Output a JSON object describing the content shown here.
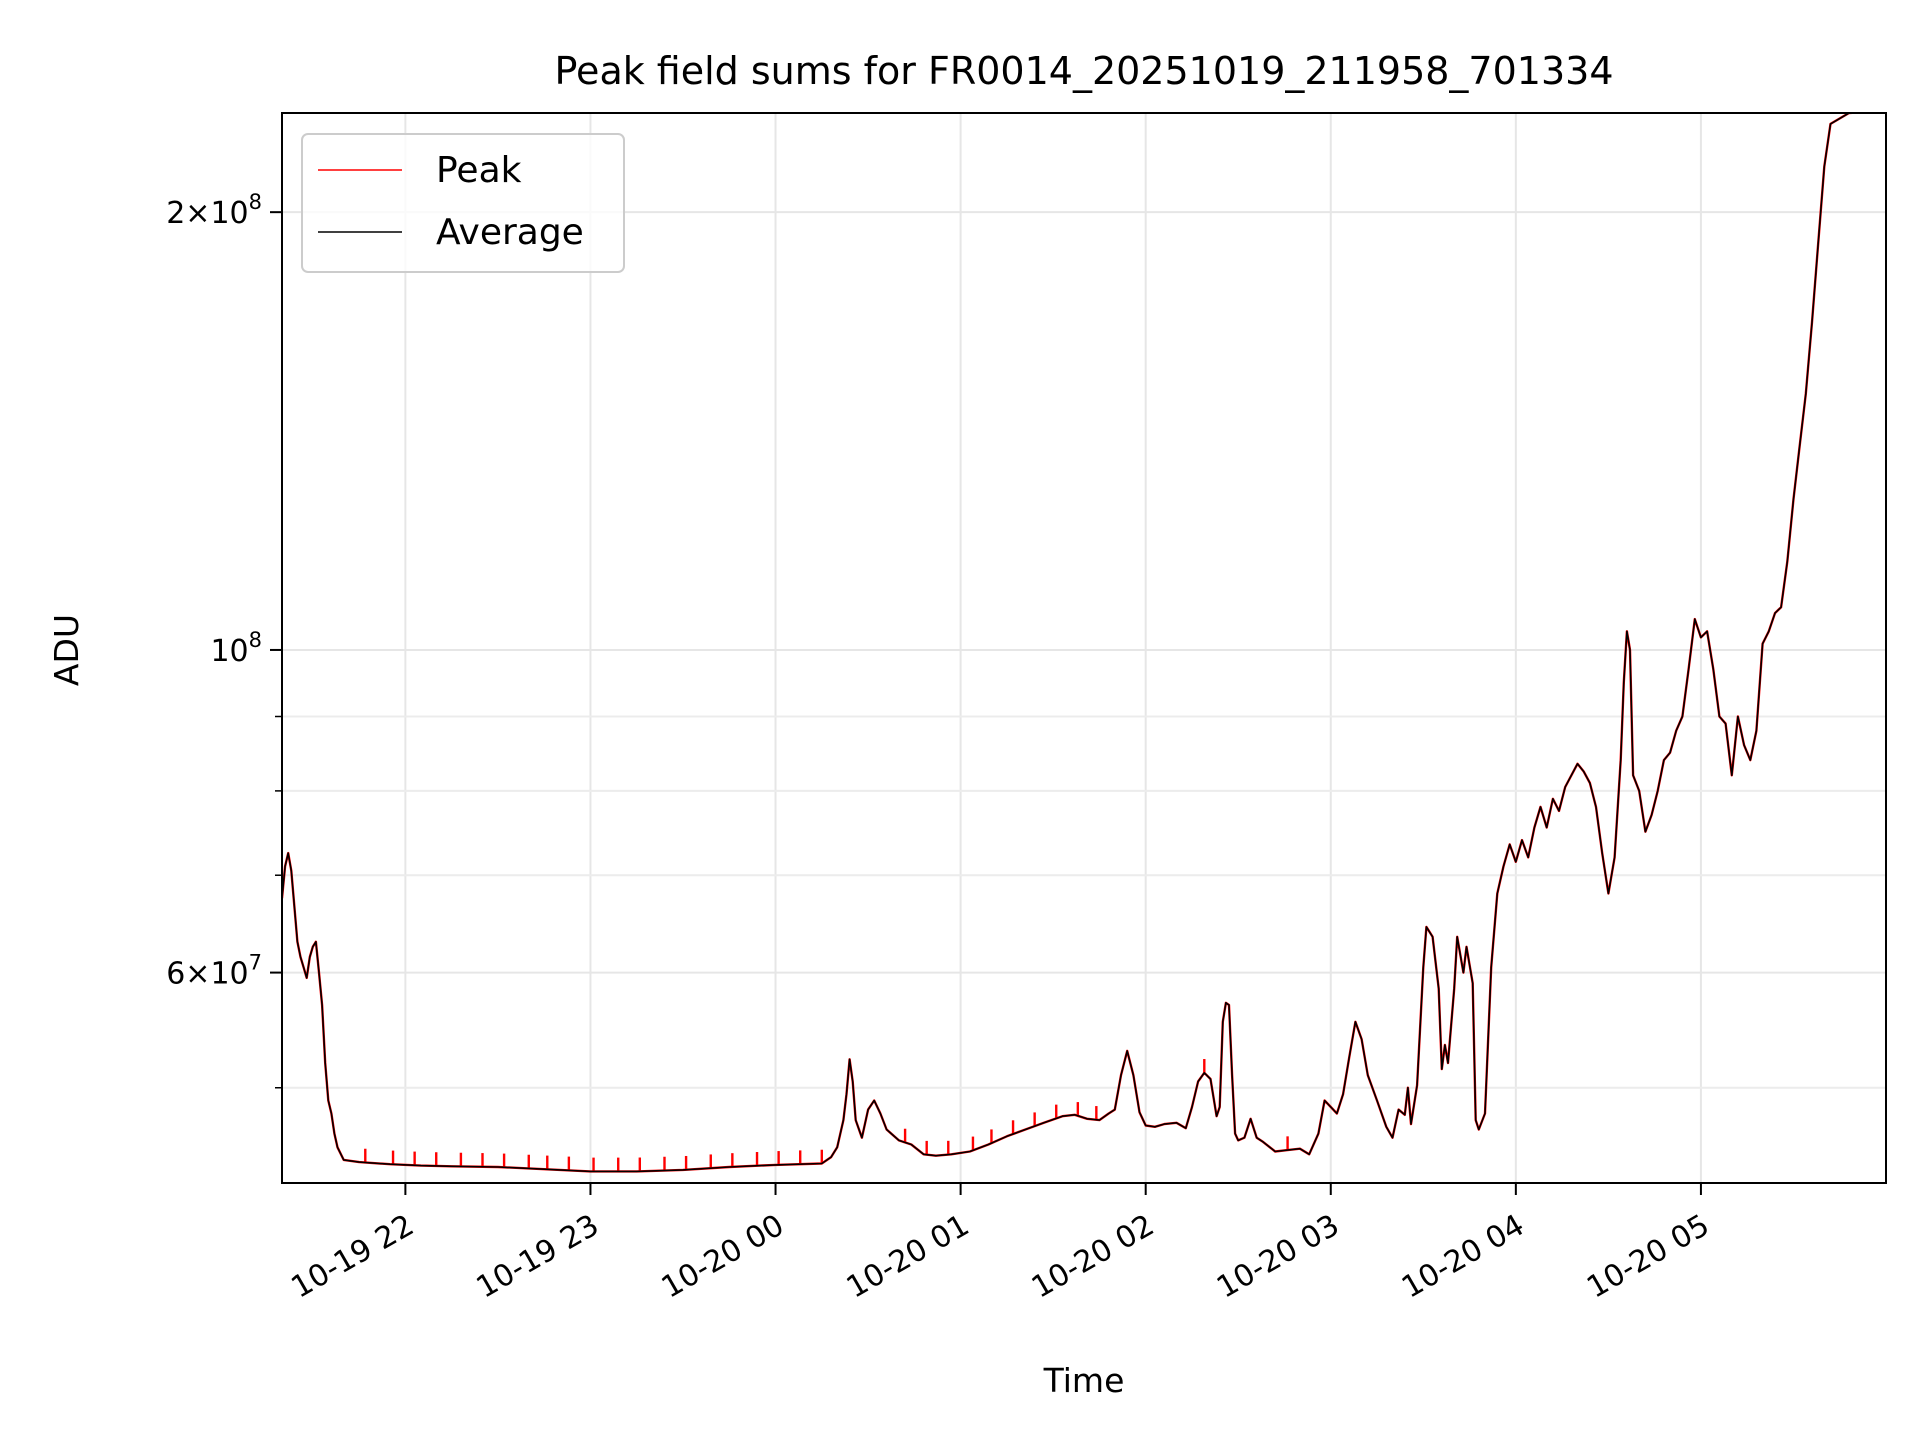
{
  "chart_data": {
    "type": "line",
    "title": "Peak field sums for FR0014_20251019_211958_701334",
    "xlabel": "Time",
    "ylabel": "ADU",
    "yscale": "log",
    "xlim": [
      "2025-10-19 21:20",
      "2025-10-20 06:00"
    ],
    "ylim": [
      43000000,
      234000000
    ],
    "x_ticks": [
      {
        "t": "2025-10-19 22:00",
        "label": "10-19 22"
      },
      {
        "t": "2025-10-19 23:00",
        "label": "10-19 23"
      },
      {
        "t": "2025-10-20 00:00",
        "label": "10-20 00"
      },
      {
        "t": "2025-10-20 01:00",
        "label": "10-20 01"
      },
      {
        "t": "2025-10-20 02:00",
        "label": "10-20 02"
      },
      {
        "t": "2025-10-20 03:00",
        "label": "10-20 03"
      },
      {
        "t": "2025-10-20 04:00",
        "label": "10-20 04"
      },
      {
        "t": "2025-10-20 05:00",
        "label": "10-20 05"
      }
    ],
    "y_major_ticks": [
      {
        "v": 60000000,
        "mant": "6",
        "exp": "7"
      },
      {
        "v": 100000000,
        "mant": "",
        "exp": "8"
      },
      {
        "v": 200000000,
        "mant": "2",
        "exp": "8"
      }
    ],
    "y_minor_ticks": [
      50000000,
      70000000,
      80000000,
      90000000
    ],
    "grid": true,
    "legend_position": "top-left",
    "series": [
      {
        "name": "Peak",
        "color": "#ff0000",
        "spikes": [
          "2025-10-19 21:47",
          "2025-10-19 21:56",
          "2025-10-19 22:03",
          "2025-10-19 22:10",
          "2025-10-19 22:18",
          "2025-10-19 22:25",
          "2025-10-19 22:32",
          "2025-10-19 22:40",
          "2025-10-19 22:46",
          "2025-10-19 22:53",
          "2025-10-19 23:01",
          "2025-10-19 23:09",
          "2025-10-19 23:16",
          "2025-10-19 23:24",
          "2025-10-19 23:31",
          "2025-10-19 23:39",
          "2025-10-19 23:46",
          "2025-10-19 23:54",
          "2025-10-20 00:01",
          "2025-10-20 00:08",
          "2025-10-20 00:15",
          "2025-10-20 00:42",
          "2025-10-20 00:49",
          "2025-10-20 00:56",
          "2025-10-20 01:04",
          "2025-10-20 01:10",
          "2025-10-20 01:17",
          "2025-10-20 01:24",
          "2025-10-20 01:31",
          "2025-10-20 01:38",
          "2025-10-20 01:44",
          "2025-10-20 02:19",
          "2025-10-20 02:46"
        ],
        "spike_height_pct": 2.2
      },
      {
        "name": "Average",
        "color": "#000000",
        "points": [
          [
            "2025-10-19 21:20",
            67500000
          ],
          [
            "2025-10-19 21:21",
            71000000
          ],
          [
            "2025-10-19 21:22",
            72500000
          ],
          [
            "2025-10-19 21:23",
            70500000
          ],
          [
            "2025-10-19 21:25",
            63000000
          ],
          [
            "2025-10-19 21:26",
            61500000
          ],
          [
            "2025-10-19 21:27",
            60500000
          ],
          [
            "2025-10-19 21:28",
            59500000
          ],
          [
            "2025-10-19 21:29",
            61500000
          ],
          [
            "2025-10-19 21:30",
            62500000
          ],
          [
            "2025-10-19 21:31",
            63000000
          ],
          [
            "2025-10-19 21:32",
            60000000
          ],
          [
            "2025-10-19 21:33",
            57000000
          ],
          [
            "2025-10-19 21:34",
            52000000
          ],
          [
            "2025-10-19 21:35",
            49000000
          ],
          [
            "2025-10-19 21:36",
            48000000
          ],
          [
            "2025-10-19 21:37",
            46500000
          ],
          [
            "2025-10-19 21:38",
            45500000
          ],
          [
            "2025-10-19 21:40",
            44600000
          ],
          [
            "2025-10-19 21:45",
            44450000
          ],
          [
            "2025-10-19 21:55",
            44300000
          ],
          [
            "2025-10-19 22:05",
            44200000
          ],
          [
            "2025-10-19 22:15",
            44150000
          ],
          [
            "2025-10-19 22:30",
            44100000
          ],
          [
            "2025-10-19 22:45",
            43950000
          ],
          [
            "2025-10-19 23:00",
            43800000
          ],
          [
            "2025-10-19 23:15",
            43800000
          ],
          [
            "2025-10-19 23:30",
            43900000
          ],
          [
            "2025-10-19 23:45",
            44100000
          ],
          [
            "2025-10-20 00:00",
            44250000
          ],
          [
            "2025-10-20 00:15",
            44350000
          ],
          [
            "2025-10-20 00:18",
            44800000
          ],
          [
            "2025-10-20 00:20",
            45500000
          ],
          [
            "2025-10-20 00:22",
            47500000
          ],
          [
            "2025-10-20 00:23",
            49500000
          ],
          [
            "2025-10-20 00:24",
            52300000
          ],
          [
            "2025-10-20 00:25",
            50500000
          ],
          [
            "2025-10-20 00:26",
            47500000
          ],
          [
            "2025-10-20 00:28",
            46200000
          ],
          [
            "2025-10-20 00:30",
            48300000
          ],
          [
            "2025-10-20 00:32",
            49000000
          ],
          [
            "2025-10-20 00:34",
            48000000
          ],
          [
            "2025-10-20 00:36",
            46800000
          ],
          [
            "2025-10-20 00:40",
            46000000
          ],
          [
            "2025-10-20 00:44",
            45700000
          ],
          [
            "2025-10-20 00:48",
            45000000
          ],
          [
            "2025-10-20 00:52",
            44900000
          ],
          [
            "2025-10-20 00:57",
            45000000
          ],
          [
            "2025-10-20 01:03",
            45200000
          ],
          [
            "2025-10-20 01:09",
            45700000
          ],
          [
            "2025-10-20 01:15",
            46300000
          ],
          [
            "2025-10-20 01:21",
            46800000
          ],
          [
            "2025-10-20 01:27",
            47300000
          ],
          [
            "2025-10-20 01:33",
            47800000
          ],
          [
            "2025-10-20 01:37",
            47900000
          ],
          [
            "2025-10-20 01:41",
            47600000
          ],
          [
            "2025-10-20 01:45",
            47500000
          ],
          [
            "2025-10-20 01:48",
            48000000
          ],
          [
            "2025-10-20 01:50",
            48300000
          ],
          [
            "2025-10-20 01:52",
            51000000
          ],
          [
            "2025-10-20 01:54",
            53000000
          ],
          [
            "2025-10-20 01:56",
            51000000
          ],
          [
            "2025-10-20 01:58",
            48100000
          ],
          [
            "2025-10-20 02:00",
            47100000
          ],
          [
            "2025-10-20 02:03",
            47000000
          ],
          [
            "2025-10-20 02:06",
            47200000
          ],
          [
            "2025-10-20 02:10",
            47300000
          ],
          [
            "2025-10-20 02:13",
            46900000
          ],
          [
            "2025-10-20 02:15",
            48500000
          ],
          [
            "2025-10-20 02:17",
            50500000
          ],
          [
            "2025-10-20 02:19",
            51200000
          ],
          [
            "2025-10-20 02:21",
            50700000
          ],
          [
            "2025-10-20 02:23",
            47800000
          ],
          [
            "2025-10-20 02:24",
            48500000
          ],
          [
            "2025-10-20 02:25",
            55500000
          ],
          [
            "2025-10-20 02:26",
            57200000
          ],
          [
            "2025-10-20 02:27",
            57000000
          ],
          [
            "2025-10-20 02:28",
            51000000
          ],
          [
            "2025-10-20 02:29",
            46500000
          ],
          [
            "2025-10-20 02:30",
            46000000
          ],
          [
            "2025-10-20 02:32",
            46200000
          ],
          [
            "2025-10-20 02:34",
            47600000
          ],
          [
            "2025-10-20 02:36",
            46200000
          ],
          [
            "2025-10-20 02:38",
            45900000
          ],
          [
            "2025-10-20 02:42",
            45200000
          ],
          [
            "2025-10-20 02:46",
            45300000
          ],
          [
            "2025-10-20 02:50",
            45400000
          ],
          [
            "2025-10-20 02:53",
            45000000
          ],
          [
            "2025-10-20 02:56",
            46500000
          ],
          [
            "2025-10-20 02:58",
            49000000
          ],
          [
            "2025-10-20 03:00",
            48500000
          ],
          [
            "2025-10-20 03:02",
            48000000
          ],
          [
            "2025-10-20 03:04",
            49500000
          ],
          [
            "2025-10-20 03:06",
            52500000
          ],
          [
            "2025-10-20 03:08",
            55500000
          ],
          [
            "2025-10-20 03:10",
            54000000
          ],
          [
            "2025-10-20 03:12",
            51000000
          ],
          [
            "2025-10-20 03:15",
            49000000
          ],
          [
            "2025-10-20 03:18",
            47000000
          ],
          [
            "2025-10-20 03:20",
            46200000
          ],
          [
            "2025-10-20 03:22",
            48300000
          ],
          [
            "2025-10-20 03:24",
            47900000
          ],
          [
            "2025-10-20 03:25",
            50000000
          ],
          [
            "2025-10-20 03:26",
            47200000
          ],
          [
            "2025-10-20 03:28",
            50200000
          ],
          [
            "2025-10-20 03:30",
            60500000
          ],
          [
            "2025-10-20 03:31",
            64500000
          ],
          [
            "2025-10-20 03:33",
            63500000
          ],
          [
            "2025-10-20 03:35",
            58500000
          ],
          [
            "2025-10-20 03:36",
            51500000
          ],
          [
            "2025-10-20 03:37",
            53500000
          ],
          [
            "2025-10-20 03:38",
            52000000
          ],
          [
            "2025-10-20 03:40",
            58500000
          ],
          [
            "2025-10-20 03:41",
            63500000
          ],
          [
            "2025-10-20 03:43",
            60000000
          ],
          [
            "2025-10-20 03:44",
            62500000
          ],
          [
            "2025-10-20 03:46",
            59000000
          ],
          [
            "2025-10-20 03:47",
            47500000
          ],
          [
            "2025-10-20 03:48",
            46800000
          ],
          [
            "2025-10-20 03:50",
            48000000
          ],
          [
            "2025-10-20 03:52",
            60500000
          ],
          [
            "2025-10-20 03:54",
            68000000
          ],
          [
            "2025-10-20 03:56",
            71000000
          ],
          [
            "2025-10-20 03:58",
            73500000
          ],
          [
            "2025-10-20 04:00",
            71500000
          ],
          [
            "2025-10-20 04:02",
            74000000
          ],
          [
            "2025-10-20 04:04",
            72000000
          ],
          [
            "2025-10-20 04:06",
            75500000
          ],
          [
            "2025-10-20 04:08",
            78000000
          ],
          [
            "2025-10-20 04:10",
            75500000
          ],
          [
            "2025-10-20 04:12",
            79000000
          ],
          [
            "2025-10-20 04:14",
            77500000
          ],
          [
            "2025-10-20 04:16",
            80500000
          ],
          [
            "2025-10-20 04:18",
            82000000
          ],
          [
            "2025-10-20 04:20",
            83500000
          ],
          [
            "2025-10-20 04:22",
            82500000
          ],
          [
            "2025-10-20 04:24",
            81000000
          ],
          [
            "2025-10-20 04:26",
            78000000
          ],
          [
            "2025-10-20 04:28",
            72500000
          ],
          [
            "2025-10-20 04:30",
            68000000
          ],
          [
            "2025-10-20 04:32",
            72000000
          ],
          [
            "2025-10-20 04:34",
            84000000
          ],
          [
            "2025-10-20 04:35",
            95000000
          ],
          [
            "2025-10-20 04:36",
            103000000
          ],
          [
            "2025-10-20 04:37",
            100000000
          ],
          [
            "2025-10-20 04:38",
            82000000
          ],
          [
            "2025-10-20 04:40",
            80000000
          ],
          [
            "2025-10-20 04:42",
            75000000
          ],
          [
            "2025-10-20 04:44",
            77000000
          ],
          [
            "2025-10-20 04:46",
            80000000
          ],
          [
            "2025-10-20 04:48",
            84000000
          ],
          [
            "2025-10-20 04:50",
            85000000
          ],
          [
            "2025-10-20 04:52",
            88000000
          ],
          [
            "2025-10-20 04:54",
            90000000
          ],
          [
            "2025-10-20 04:56",
            97000000
          ],
          [
            "2025-10-20 04:58",
            105000000
          ],
          [
            "2025-10-20 05:00",
            102000000
          ],
          [
            "2025-10-20 05:02",
            103000000
          ],
          [
            "2025-10-20 05:04",
            97000000
          ],
          [
            "2025-10-20 05:06",
            90000000
          ],
          [
            "2025-10-20 05:08",
            89000000
          ],
          [
            "2025-10-20 05:10",
            82000000
          ],
          [
            "2025-10-20 05:12",
            90000000
          ],
          [
            "2025-10-20 05:14",
            86000000
          ],
          [
            "2025-10-20 05:16",
            84000000
          ],
          [
            "2025-10-20 05:18",
            88000000
          ],
          [
            "2025-10-20 05:20",
            101000000
          ],
          [
            "2025-10-20 05:22",
            103000000
          ],
          [
            "2025-10-20 05:24",
            106000000
          ],
          [
            "2025-10-20 05:26",
            107000000
          ],
          [
            "2025-10-20 05:28",
            115000000
          ],
          [
            "2025-10-20 05:30",
            127000000
          ],
          [
            "2025-10-20 05:32",
            138000000
          ],
          [
            "2025-10-20 05:34",
            150000000
          ],
          [
            "2025-10-20 05:36",
            168000000
          ],
          [
            "2025-10-20 05:38",
            190000000
          ],
          [
            "2025-10-20 05:40",
            215000000
          ],
          [
            "2025-10-20 05:42",
            230000000
          ],
          [
            "2025-10-20 05:48",
            234000000
          ],
          [
            "2025-10-20 06:00",
            235000000
          ]
        ]
      }
    ]
  }
}
